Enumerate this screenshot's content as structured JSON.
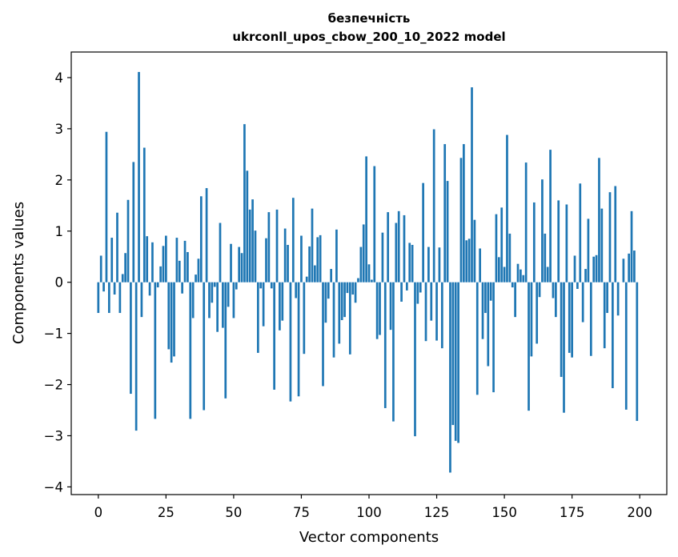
{
  "chart_data": {
    "type": "bar",
    "title_line1": "безпечність",
    "title_line2": "ukrconll_upos_cbow_200_10_2022 model",
    "xlabel": "Vector components",
    "ylabel": "Components values",
    "xlim": [
      -10,
      210
    ],
    "ylim": [
      -4.15,
      4.5
    ],
    "xticks": [
      0,
      25,
      50,
      75,
      100,
      125,
      150,
      175,
      200
    ],
    "yticks": [
      -4,
      -3,
      -2,
      -1,
      0,
      1,
      2,
      3,
      4
    ],
    "xtick_labels": [
      "0",
      "25",
      "50",
      "75",
      "100",
      "125",
      "150",
      "175",
      "200"
    ],
    "ytick_labels": [
      "−4",
      "−3",
      "−2",
      "−1",
      "0",
      "1",
      "2",
      "3",
      "4"
    ],
    "bar_color": "#1f77b4",
    "grid": false,
    "values": [
      -0.6,
      0.52,
      -0.18,
      2.94,
      -0.6,
      0.87,
      -0.24,
      1.36,
      -0.6,
      0.16,
      0.57,
      1.61,
      -2.18,
      2.35,
      -2.9,
      4.11,
      -0.68,
      2.63,
      0.9,
      -0.26,
      0.78,
      -2.67,
      -0.1,
      0.31,
      0.71,
      0.91,
      -1.31,
      -1.57,
      -1.45,
      0.87,
      0.42,
      -0.22,
      0.81,
      0.59,
      -2.67,
      -0.7,
      0.15,
      0.46,
      1.68,
      -2.5,
      1.84,
      -0.7,
      -0.4,
      -0.09,
      -0.97,
      1.16,
      -0.89,
      -2.27,
      -0.48,
      0.75,
      -0.7,
      -0.14,
      0.69,
      0.57,
      3.09,
      2.18,
      1.42,
      1.62,
      1.01,
      -1.38,
      -0.12,
      -0.86,
      0.86,
      1.37,
      -0.12,
      -2.1,
      1.42,
      -0.94,
      -0.75,
      1.05,
      0.73,
      -2.33,
      1.65,
      -0.31,
      -2.23,
      0.91,
      -1.4,
      0.11,
      0.7,
      1.44,
      0.33,
      0.88,
      0.92,
      -2.03,
      -0.79,
      -0.32,
      0.26,
      -1.47,
      1.03,
      -1.2,
      -0.74,
      -0.68,
      -0.21,
      -1.41,
      -0.24,
      -0.4,
      0.08,
      0.69,
      1.13,
      2.46,
      0.35,
      0.05,
      2.27,
      -1.11,
      -1.03,
      0.97,
      -2.46,
      1.37,
      -0.93,
      -2.72,
      1.16,
      1.39,
      -0.38,
      1.31,
      -0.16,
      0.77,
      0.73,
      -3.01,
      -0.42,
      -0.2,
      1.94,
      -1.15,
      0.69,
      -0.75,
      2.99,
      -1.14,
      0.68,
      -1.29,
      2.7,
      1.98,
      -3.72,
      -2.79,
      -3.1,
      -3.14,
      2.43,
      2.7,
      0.82,
      0.85,
      3.81,
      1.22,
      -2.2,
      0.66,
      -1.11,
      -0.6,
      -1.64,
      -0.36,
      -2.15,
      1.33,
      0.49,
      1.46,
      0.3,
      2.88,
      0.95,
      -0.1,
      -0.68,
      0.36,
      0.25,
      0.14,
      2.34,
      -2.51,
      -1.45,
      1.56,
      -1.2,
      -0.29,
      2.01,
      0.95,
      0.3,
      2.59,
      -0.31,
      -0.68,
      1.6,
      -1.85,
      -2.55,
      1.52,
      -1.38,
      -1.47,
      0.52,
      -0.13,
      1.93,
      -0.78,
      0.26,
      1.24,
      -1.44,
      0.5,
      0.53,
      2.43,
      1.44,
      -1.29,
      -0.6,
      1.76,
      -2.07,
      1.88,
      -0.65,
      0.0,
      0.46,
      -2.49,
      0.56,
      1.39,
      0.62,
      -2.71
    ]
  }
}
